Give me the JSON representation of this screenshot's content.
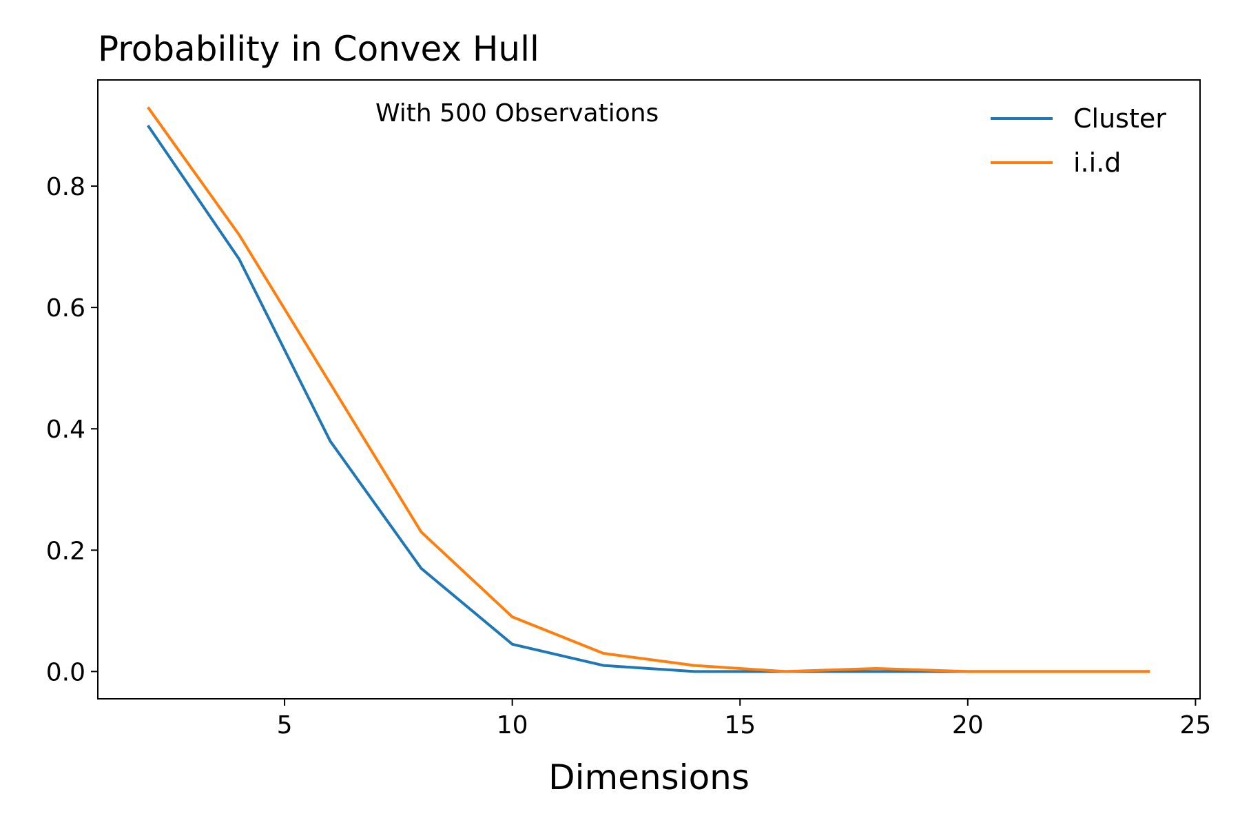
{
  "chart_data": {
    "type": "line",
    "title": "Probability in Convex Hull",
    "annotation": "With 500 Observations",
    "xlabel": "Dimensions",
    "ylabel": "",
    "xlim": [
      0.9,
      25.1
    ],
    "ylim": [
      -0.045,
      0.975
    ],
    "xticks": [
      5,
      10,
      15,
      20,
      25
    ],
    "yticks": [
      0.0,
      0.2,
      0.4,
      0.6,
      0.8
    ],
    "xtick_labels": [
      "5",
      "10",
      "15",
      "20",
      "25"
    ],
    "ytick_labels": [
      "0.0",
      "0.2",
      "0.4",
      "0.6",
      "0.8"
    ],
    "grid": false,
    "legend_position": "top-right",
    "x": [
      2,
      4,
      6,
      8,
      10,
      12,
      14,
      16,
      18,
      20,
      22,
      24
    ],
    "series": [
      {
        "name": "Cluster",
        "color": "#1f77b4",
        "values": [
          0.9,
          0.68,
          0.38,
          0.17,
          0.045,
          0.01,
          0.0,
          0.0,
          0.0,
          0.0,
          0.0,
          0.0
        ]
      },
      {
        "name": "i.i.d",
        "color": "#ff7f0e",
        "values": [
          0.93,
          0.72,
          0.475,
          0.23,
          0.09,
          0.03,
          0.01,
          0.0,
          0.005,
          0.0,
          0.0,
          0.0
        ]
      }
    ]
  }
}
